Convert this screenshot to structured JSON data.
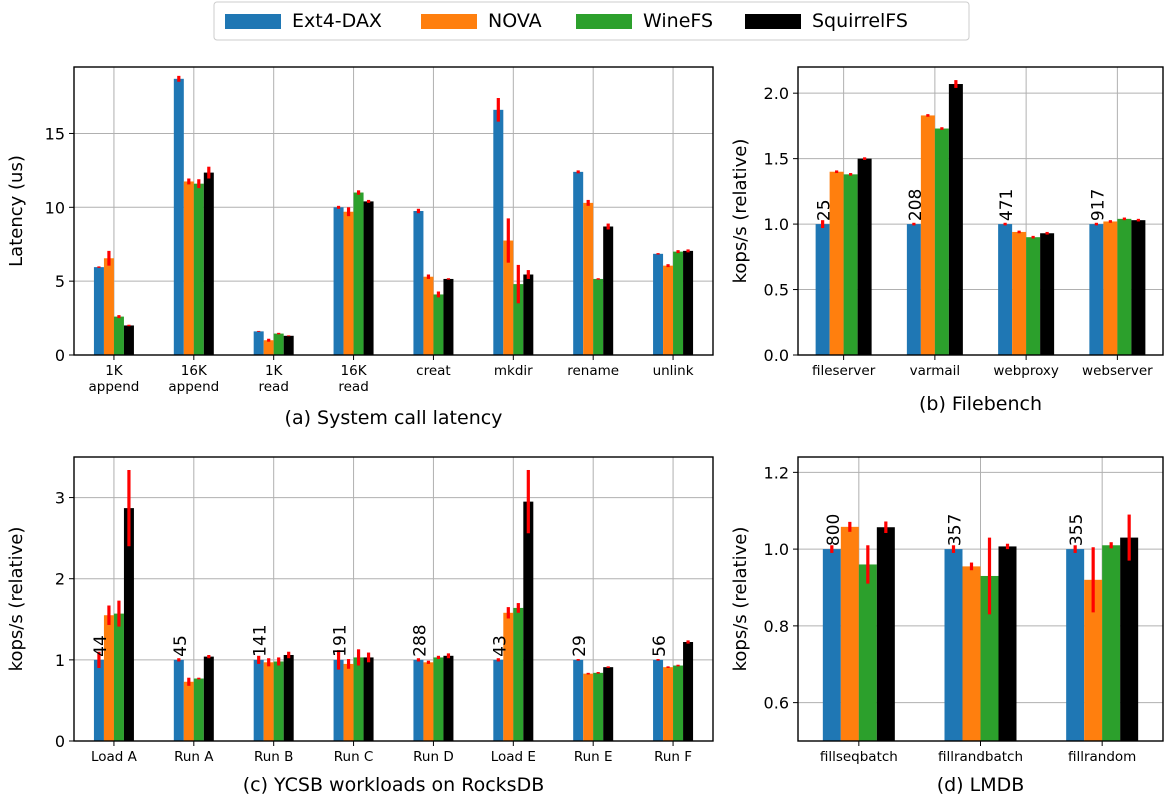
{
  "colors": {
    "Ext4-DAX": "#1f77b4",
    "NOVA": "#ff7f0e",
    "WineFS": "#2ca02c",
    "SquirrelFS": "#000000",
    "error": "#ff0000",
    "grid": "#b0b0b0"
  },
  "legend": [
    "Ext4-DAX",
    "NOVA",
    "WineFS",
    "SquirrelFS"
  ],
  "chart_data": [
    {
      "type": "bar",
      "caption": "(a) System call latency",
      "ylabel": "Latency (us)",
      "ylim": [
        0,
        19.5
      ],
      "yticks": [
        0,
        5,
        10,
        15
      ],
      "grid": true,
      "categories": [
        "1K\nappend",
        "16K\nappend",
        "1K\nread",
        "16K\nread",
        "creat",
        "mkdir",
        "rename",
        "unlink"
      ],
      "series": [
        {
          "name": "Ext4-DAX",
          "values": [
            5.95,
            18.7,
            1.6,
            10.0,
            9.75,
            16.6,
            12.4,
            6.85
          ],
          "errors": [
            0.05,
            0.2,
            0.03,
            0.1,
            0.15,
            0.8,
            0.1,
            0.05
          ]
        },
        {
          "name": "NOVA",
          "values": [
            6.55,
            11.75,
            1.0,
            9.7,
            5.3,
            7.75,
            10.3,
            6.05
          ],
          "errors": [
            0.5,
            0.2,
            0.1,
            0.3,
            0.15,
            1.5,
            0.2,
            0.1
          ]
        },
        {
          "name": "WineFS",
          "values": [
            2.6,
            11.6,
            1.45,
            11.0,
            4.1,
            4.8,
            5.15,
            7.0
          ],
          "errors": [
            0.1,
            0.3,
            0.05,
            0.15,
            0.2,
            1.3,
            0.05,
            0.1
          ]
        },
        {
          "name": "SquirrelFS",
          "values": [
            2.0,
            12.35,
            1.3,
            10.4,
            5.15,
            5.45,
            8.7,
            7.05
          ],
          "errors": [
            0.05,
            0.4,
            0.03,
            0.1,
            0.05,
            0.3,
            0.2,
            0.1
          ]
        }
      ],
      "bar_labels": []
    },
    {
      "type": "bar",
      "caption": "(b) Filebench",
      "ylabel": "kops/s (relative)",
      "ylim": [
        0,
        2.2
      ],
      "yticks": [
        0.0,
        0.5,
        1.0,
        1.5,
        2.0
      ],
      "tick_decimals": 1,
      "grid": true,
      "categories": [
        "fileserver",
        "varmail",
        "webproxy",
        "webserver"
      ],
      "series": [
        {
          "name": "Ext4-DAX",
          "values": [
            1.0,
            1.0,
            1.0,
            1.0
          ],
          "errors": [
            0.03,
            0.01,
            0.01,
            0.01
          ]
        },
        {
          "name": "NOVA",
          "values": [
            1.4,
            1.83,
            0.94,
            1.02
          ],
          "errors": [
            0.01,
            0.01,
            0.01,
            0.01
          ]
        },
        {
          "name": "WineFS",
          "values": [
            1.38,
            1.73,
            0.9,
            1.04
          ],
          "errors": [
            0.01,
            0.01,
            0.01,
            0.01
          ]
        },
        {
          "name": "SquirrelFS",
          "values": [
            1.5,
            2.07,
            0.93,
            1.03
          ],
          "errors": [
            0.01,
            0.03,
            0.01,
            0.01
          ]
        }
      ],
      "bar_labels": [
        "25",
        "208",
        "471",
        "917"
      ]
    },
    {
      "type": "bar",
      "caption": "(c) YCSB workloads on RocksDB",
      "ylabel": "kops/s (relative)",
      "ylim": [
        0,
        3.5
      ],
      "yticks": [
        0,
        1,
        2,
        3
      ],
      "grid": true,
      "categories": [
        "Load A",
        "Run A",
        "Run B",
        "Run C",
        "Run D",
        "Load E",
        "Run E",
        "Run F"
      ],
      "series": [
        {
          "name": "Ext4-DAX",
          "values": [
            1.0,
            1.0,
            1.0,
            1.0,
            1.0,
            1.0,
            1.0,
            1.0
          ],
          "errors": [
            0.1,
            0.02,
            0.05,
            0.12,
            0.02,
            0.02,
            0.01,
            0.01
          ]
        },
        {
          "name": "NOVA",
          "values": [
            1.55,
            0.73,
            0.97,
            0.95,
            0.97,
            1.58,
            0.83,
            0.91
          ],
          "errors": [
            0.12,
            0.05,
            0.05,
            0.06,
            0.02,
            0.07,
            0.01,
            0.01
          ]
        },
        {
          "name": "WineFS",
          "values": [
            1.57,
            0.77,
            0.98,
            1.03,
            1.03,
            1.64,
            0.84,
            0.93
          ],
          "errors": [
            0.16,
            0.01,
            0.05,
            0.1,
            0.02,
            0.06,
            0.01,
            0.01
          ]
        },
        {
          "name": "SquirrelFS",
          "values": [
            2.87,
            1.04,
            1.06,
            1.03,
            1.05,
            2.95,
            0.91,
            1.22
          ],
          "errors": [
            0.47,
            0.02,
            0.04,
            0.06,
            0.03,
            0.39,
            0.01,
            0.02
          ]
        }
      ],
      "bar_labels": [
        "44",
        "45",
        "141",
        "191",
        "288",
        "43",
        "29",
        "56"
      ]
    },
    {
      "type": "bar",
      "caption": "(d) LMDB",
      "ylabel": "kops/s (relative)",
      "ylim": [
        0.5,
        1.24
      ],
      "yticks": [
        0.6,
        0.8,
        1.0,
        1.2
      ],
      "tick_decimals": 1,
      "grid": true,
      "categories": [
        "fillseqbatch",
        "fillrandbatch",
        "fillrandom"
      ],
      "series": [
        {
          "name": "Ext4-DAX",
          "values": [
            1.0,
            1.0,
            1.0
          ],
          "errors": [
            0.01,
            0.01,
            0.01
          ]
        },
        {
          "name": "NOVA",
          "values": [
            1.058,
            0.955,
            0.92
          ],
          "errors": [
            0.013,
            0.01,
            0.085
          ]
        },
        {
          "name": "WineFS",
          "values": [
            0.96,
            0.93,
            1.01
          ],
          "errors": [
            0.05,
            0.1,
            0.008
          ]
        },
        {
          "name": "SquirrelFS",
          "values": [
            1.057,
            1.007,
            1.03
          ],
          "errors": [
            0.015,
            0.007,
            0.06
          ]
        }
      ],
      "bar_labels": [
        "800",
        "357",
        "355"
      ]
    }
  ]
}
